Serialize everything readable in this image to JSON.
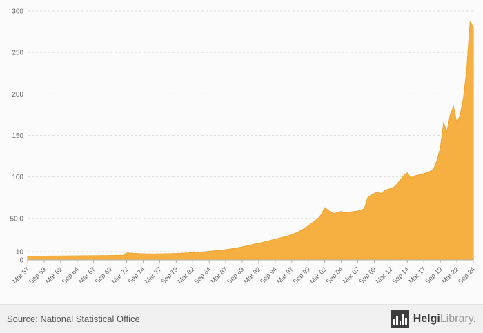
{
  "page": {
    "background": "#fbfbfb"
  },
  "footer": {
    "source_label": "Source: National Statistical Office",
    "brand_bold": "Helgi",
    "brand_light": "Library",
    "brand_suffix": "."
  },
  "chart_data": {
    "type": "area",
    "title": "",
    "xlabel": "",
    "ylabel": "",
    "frequency": "semiannual",
    "x_start": "Mar 57",
    "x_end": "Sep 24",
    "x_tick_step": 5,
    "x_tick_labels": [
      "Mar 57",
      "Sep 59",
      "Mar 62",
      "Sep 64",
      "Mar 67",
      "Sep 69",
      "Mar 72",
      "Sep 74",
      "Mar 77",
      "Sep 79",
      "Mar 82",
      "Sep 84",
      "Mar 87",
      "Sep 89",
      "Mar 92",
      "Sep 94",
      "Mar 97",
      "Sep 99",
      "Mar 02",
      "Sep 04",
      "Mar 07",
      "Sep 09",
      "Mar 12",
      "Sep 14",
      "Mar 17",
      "Sep 19",
      "Mar 22",
      "Sep 24"
    ],
    "y_ticks": [
      {
        "value": 300,
        "label": "300"
      },
      {
        "value": 250,
        "label": "250"
      },
      {
        "value": 200,
        "label": "200"
      },
      {
        "value": 150,
        "label": "150"
      },
      {
        "value": 100,
        "label": "100"
      },
      {
        "value": 50,
        "label": "50.0"
      },
      {
        "value": 10,
        "label": "10"
      },
      {
        "value": 0,
        "label": "0"
      }
    ],
    "ylim": [
      0,
      300
    ],
    "grid": "horizontal-dashed",
    "legend": "none",
    "area_color": "#F5B041",
    "line_color": "#EDA32F",
    "axis_color": "#b0b0b0",
    "grid_color": "#dcdcdc",
    "tick_label_color": "#666666",
    "values": [
      4.5,
      4.5,
      4.5,
      4.5,
      4.6,
      4.6,
      4.6,
      4.7,
      4.7,
      4.7,
      4.8,
      4.8,
      4.8,
      4.9,
      4.9,
      4.9,
      5.0,
      5.0,
      5.0,
      5.1,
      5.1,
      5.1,
      5.2,
      5.2,
      5.2,
      5.3,
      5.3,
      5.4,
      5.5,
      5.6,
      8.5,
      8.3,
      8.0,
      7.8,
      7.6,
      7.5,
      7.4,
      7.3,
      7.3,
      7.3,
      7.4,
      7.4,
      7.5,
      7.6,
      7.7,
      7.8,
      8.0,
      8.2,
      8.4,
      8.6,
      8.8,
      9.0,
      9.3,
      9.6,
      10.0,
      10.4,
      10.8,
      11.2,
      11.6,
      12.0,
      12.5,
      13.0,
      13.6,
      14.2,
      15.0,
      15.8,
      16.6,
      17.5,
      18.4,
      19.3,
      20.2,
      21.0,
      22.0,
      23.0,
      24.0,
      25.0,
      26.0,
      27.0,
      28.0,
      29.0,
      30.5,
      32.0,
      34.0,
      36.0,
      38.5,
      41.0,
      44.0,
      47.0,
      50.0,
      55.0,
      63.0,
      60.0,
      57.0,
      56.0,
      57.5,
      58.5,
      57.0,
      57.5,
      58.0,
      58.5,
      59.0,
      60.0,
      62.0,
      75.0,
      78.0,
      80.0,
      82.0,
      80.0,
      83.0,
      85.0,
      86.0,
      88.0,
      92.0,
      97.0,
      102.0,
      105.0,
      99.0,
      101.0,
      102.0,
      103.0,
      104.0,
      105.0,
      107.0,
      110.0,
      120.0,
      135.0,
      165.0,
      155.0,
      175.0,
      185.0,
      165.0,
      175.0,
      195.0,
      230.0,
      287.0,
      281.0
    ]
  }
}
